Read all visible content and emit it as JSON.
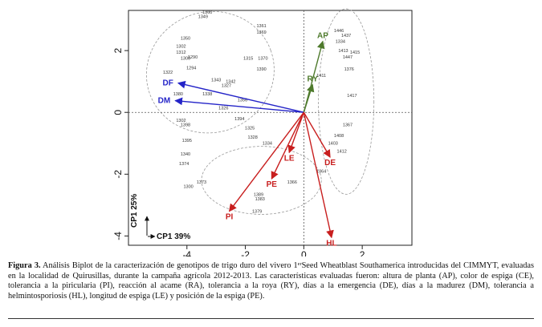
{
  "chart_data": {
    "type": "scatter",
    "subtype": "biplot",
    "xlim": [
      -6.0,
      3.7
    ],
    "ylim": [
      -4.3,
      3.3
    ],
    "x_ticks": [
      -4,
      -2,
      0,
      2
    ],
    "y_ticks": [
      -4,
      -2,
      0,
      2
    ],
    "x_tick_labels": [
      "-4",
      "-2",
      "0",
      "2"
    ],
    "y_tick_labels": [
      "-4",
      "-2",
      "0",
      "2"
    ],
    "xlabel": "CP1 39%",
    "ylabel": "CP1 25%",
    "grid": false,
    "reference_lines": "dotted lines at x = 0 and y = 0",
    "vectors": [
      {
        "name": "AP",
        "x": 0.65,
        "y": 2.3,
        "color": "#4e7a2c"
      },
      {
        "name": "RY",
        "x": 0.3,
        "y": 0.9,
        "color": "#4e7a2c"
      },
      {
        "name": "DF",
        "x": -4.3,
        "y": 0.95,
        "color": "#2424c8"
      },
      {
        "name": "DM",
        "x": -4.4,
        "y": 0.38,
        "color": "#2424c8"
      },
      {
        "name": "PI",
        "x": -2.55,
        "y": -3.2,
        "color": "#c81e1e"
      },
      {
        "name": "PE",
        "x": -1.1,
        "y": -2.15,
        "color": "#c81e1e"
      },
      {
        "name": "LE",
        "x": -0.5,
        "y": -1.3,
        "color": "#c81e1e"
      },
      {
        "name": "DE",
        "x": 0.9,
        "y": -1.45,
        "color": "#c81e1e"
      },
      {
        "name": "HL",
        "x": 0.95,
        "y": -4.05,
        "color": "#c81e1e"
      }
    ],
    "groups": [
      {
        "name": "DF/DM group",
        "center": [
          -3.2,
          1.3
        ],
        "rx": 2.2,
        "ry": 1.95,
        "angle": -20
      },
      {
        "name": "PI group",
        "center": [
          -1.45,
          -2.2
        ],
        "rx": 2.05,
        "ry": 1.1,
        "angle": 0
      },
      {
        "name": "AP/RY group",
        "center": [
          1.45,
          0.35
        ],
        "rx": 0.95,
        "ry": 3.0,
        "angle": 0
      }
    ],
    "genotype_labels": [
      {
        "label": "1360",
        "x": -3.3,
        "y": 3.2
      },
      {
        "label": "1349",
        "x": -3.45,
        "y": 3.05
      },
      {
        "label": "1361",
        "x": -1.45,
        "y": 2.75
      },
      {
        "label": "1369",
        "x": -1.45,
        "y": 2.55
      },
      {
        "label": "1350",
        "x": -4.05,
        "y": 2.35
      },
      {
        "label": "1302",
        "x": -4.2,
        "y": 2.1
      },
      {
        "label": "1312",
        "x": -4.2,
        "y": 1.9
      },
      {
        "label": "1300",
        "x": -4.05,
        "y": 1.7
      },
      {
        "label": "1290",
        "x": -3.8,
        "y": 1.75
      },
      {
        "label": "1294",
        "x": -3.85,
        "y": 1.4
      },
      {
        "label": "1315",
        "x": -1.9,
        "y": 1.7
      },
      {
        "label": "1370",
        "x": -1.4,
        "y": 1.7
      },
      {
        "label": "1390",
        "x": -1.45,
        "y": 1.35
      },
      {
        "label": "1322",
        "x": -4.65,
        "y": 1.25
      },
      {
        "label": "1343",
        "x": -3.0,
        "y": 1.0
      },
      {
        "label": "1342",
        "x": -2.5,
        "y": 0.95
      },
      {
        "label": "1327",
        "x": -2.65,
        "y": 0.82
      },
      {
        "label": "1338",
        "x": -3.3,
        "y": 0.55
      },
      {
        "label": "1380",
        "x": -4.3,
        "y": 0.55
      },
      {
        "label": "1356",
        "x": -2.1,
        "y": 0.35
      },
      {
        "label": "1326",
        "x": -2.75,
        "y": 0.1
      },
      {
        "label": "1394",
        "x": -2.2,
        "y": -0.25
      },
      {
        "label": "1302",
        "x": -4.2,
        "y": -0.3
      },
      {
        "label": "1398",
        "x": -4.05,
        "y": -0.45
      },
      {
        "label": "1395",
        "x": -4.0,
        "y": -0.95
      },
      {
        "label": "1325",
        "x": -1.85,
        "y": -0.55
      },
      {
        "label": "1328",
        "x": -1.75,
        "y": -0.85
      },
      {
        "label": "1334",
        "x": -1.25,
        "y": -1.05
      },
      {
        "label": "1340",
        "x": -4.05,
        "y": -1.4
      },
      {
        "label": "1374",
        "x": -4.1,
        "y": -1.7
      },
      {
        "label": "1373",
        "x": -3.5,
        "y": -2.3
      },
      {
        "label": "1300",
        "x": -3.95,
        "y": -2.45
      },
      {
        "label": "1389",
        "x": -1.55,
        "y": -2.7
      },
      {
        "label": "1383",
        "x": -1.5,
        "y": -2.85
      },
      {
        "label": "1379",
        "x": -1.6,
        "y": -3.25
      },
      {
        "label": "1366",
        "x": -0.4,
        "y": -2.3
      },
      {
        "label": "1364",
        "x": 0.6,
        "y": -1.95
      },
      {
        "label": "1446",
        "x": 1.2,
        "y": 2.6
      },
      {
        "label": "1437",
        "x": 1.45,
        "y": 2.45
      },
      {
        "label": "1334",
        "x": 1.25,
        "y": 2.25
      },
      {
        "label": "1413",
        "x": 1.35,
        "y": 1.95
      },
      {
        "label": "1415",
        "x": 1.75,
        "y": 1.9
      },
      {
        "label": "1447",
        "x": 1.5,
        "y": 1.75
      },
      {
        "label": "1411",
        "x": 0.6,
        "y": 1.15
      },
      {
        "label": "1376",
        "x": 1.55,
        "y": 1.35
      },
      {
        "label": "1417",
        "x": 1.65,
        "y": 0.5
      },
      {
        "label": "1367",
        "x": 1.5,
        "y": -0.45
      },
      {
        "label": "1408",
        "x": 1.2,
        "y": -0.8
      },
      {
        "label": "1403",
        "x": 1.0,
        "y": -1.05
      },
      {
        "label": "1412",
        "x": 1.3,
        "y": -1.3
      }
    ]
  },
  "caption": {
    "label": "Figura 3.",
    "text": " Análisis Biplot de la caracterización de genotipos de trigo duro del vivero 1ᵉʳSeed Wheatblast Southamerica introducidas del CIMMYT, evaluadas en la localidad de Quirusillas, durante la campaña agrícola 2012-2013. Las características evaluadas fueron: altura de planta (AP), color de espiga (CE), tolerancia a la piricularia (PI), reacción al acame (RA), tolerancia a la roya (RY), días a la emergencia (DE), días a la madurez (DM), tolerancia a helmintosporiosis (HL), longitud de espiga (LE) y posición de la espiga (PE)."
  }
}
